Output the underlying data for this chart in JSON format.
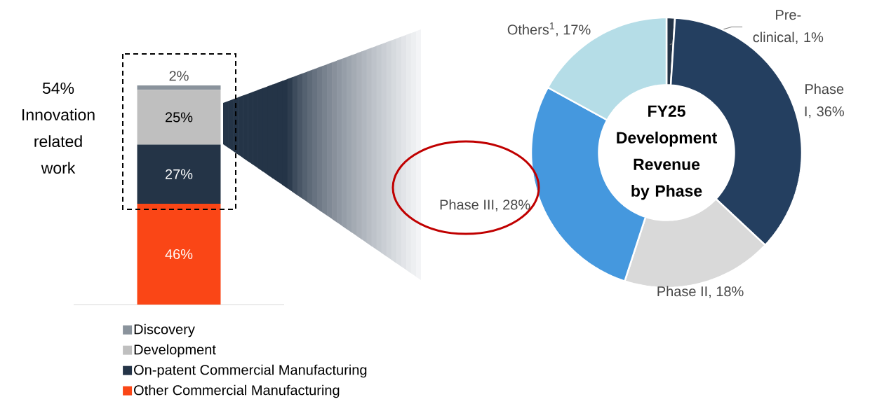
{
  "chart_data": [
    {
      "type": "bar",
      "stacked": true,
      "categories": [
        null
      ],
      "legend": "bottom",
      "annotations": [
        "54% Innovation related work"
      ],
      "series": [
        {
          "name": "Other Commercial Manufacturing",
          "color": "#fa4616",
          "values": [
            46
          ],
          "value_labels": [
            "46%"
          ]
        },
        {
          "name": "On-patent Commercial Manufacturing",
          "color": "#243447",
          "values": [
            27
          ],
          "value_labels": [
            "27%"
          ]
        },
        {
          "name": "Development",
          "color": "#bfbfbf",
          "values": [
            25
          ],
          "value_labels": [
            "25%"
          ]
        },
        {
          "name": "Discovery",
          "color": "#8a939c",
          "values": [
            2
          ],
          "value_labels": [
            "2%"
          ]
        }
      ]
    },
    {
      "type": "donut",
      "title": "FY25 Development Revenue by Phase",
      "categories": [
        "Pre-clinical, 1%",
        "Phase I, 36%",
        "Phase II, 18%",
        "Phase III, 28%",
        "Others$^{1}$, 17%"
      ],
      "values": [
        1,
        36,
        18,
        28,
        17
      ],
      "colors": [
        "#243447",
        "#243f60",
        "#d9d9d9",
        "#4598de",
        "#b5dde7"
      ]
    }
  ]
}
